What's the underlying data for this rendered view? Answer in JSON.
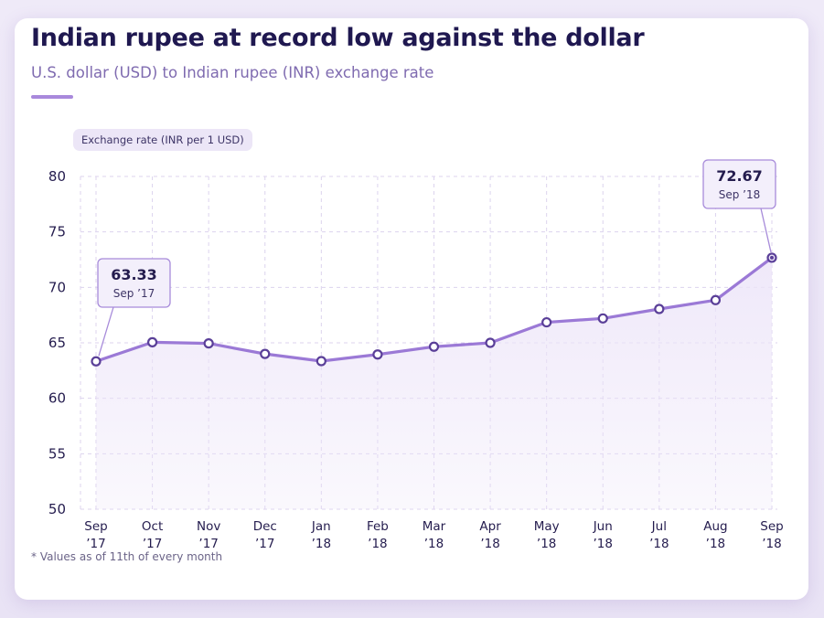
{
  "chart_data": {
    "type": "line",
    "title": "Indian rupee at record low against the dollar",
    "subtitle": "U.S. dollar (USD) to Indian rupee (INR) exchange rate",
    "ylabel": "Exchange rate (INR per 1 USD)",
    "xlabel": "",
    "ylim": [
      50,
      80
    ],
    "yticks": [
      50,
      55,
      60,
      65,
      70,
      75,
      80
    ],
    "grid": true,
    "categories": [
      [
        "Sep",
        "’17"
      ],
      [
        "Oct",
        "’17"
      ],
      [
        "Nov",
        "’17"
      ],
      [
        "Dec",
        "’17"
      ],
      [
        "Jan",
        "’18"
      ],
      [
        "Feb",
        "’18"
      ],
      [
        "Mar",
        "’18"
      ],
      [
        "Apr",
        "’18"
      ],
      [
        "May",
        "’18"
      ],
      [
        "Jun",
        "’18"
      ],
      [
        "Jul",
        "’18"
      ],
      [
        "Aug",
        "’18"
      ],
      [
        "Sep",
        "’18"
      ]
    ],
    "series": [
      {
        "values": [
          63.33,
          65.05,
          64.95,
          64.0,
          63.35,
          63.95,
          64.65,
          65.0,
          66.85,
          67.2,
          68.05,
          68.85,
          72.67
        ]
      }
    ],
    "annotations": [
      {
        "index": 0,
        "value": "63.33",
        "date": "Sep ’17"
      },
      {
        "index": 12,
        "value": "72.67",
        "date": "Sep ’18"
      }
    ],
    "footnote": "* Values as of 11th of every month",
    "colors": {
      "line": "#9b79d6",
      "marker_stroke": "#5a3f98",
      "marker_fill": "#ffffff",
      "area": "#ece4f8",
      "grid": "#dcd3ee",
      "callout_fill": "#f3effb",
      "callout_stroke": "#a78bda",
      "text": "#241c4e"
    }
  }
}
